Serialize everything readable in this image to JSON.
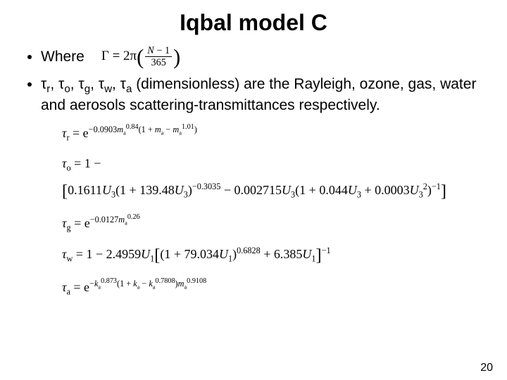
{
  "title": "Iqbal model C",
  "bullet_where": "Where",
  "gamma_formula_html": "Γ = 2π<span class=\"bigparen\">(</span><span class=\"frac\"><span class=\"num\"><i>N</i> − 1</span><span class=\"den\">365</span></span><span class=\"bigparen\">)</span>",
  "bullet_transmittances": "τ<span class=\"sub\">r</span>, τ<span class=\"sub\">o</span>, τ<span class=\"sub\">g</span>, τ<span class=\"sub\">w</span>, τ<span class=\"sub\">a</span> (dimensionless) are the Rayleigh, ozone, gas, water and aerosols scattering-transmittances respectively.",
  "eq_r": "<i>τ</i><span class=\"low\">r</span> = e<span class=\"exp\">−0.0903<i>m</i><span class=\"low\">a</span><sup>0.84</sup>(1 + <i>m</i><span class=\"low\">a</span> − <i>m</i><span class=\"low\">a</span><sup>1.01</sup>)</span>",
  "eq_o_line1": "<i>τ</i><span class=\"low\">o</span> = 1 −",
  "eq_o_line2": "<span class=\"brkt\">[</span>0.1611<i>U</i><span class=\"low\">3</span>(1 + 139.48<i>U</i><span class=\"low\">3</span>)<span class=\"exp\">−0.3035</span> − 0.002715<i>U</i><span class=\"low\">3</span>(1 + 0.044<i>U</i><span class=\"low\">3</span> + 0.0003<i>U</i><span class=\"low\">3</span><span class=\"exp\">2</span>)<span class=\"exp\">−1</span><span class=\"brkt\">]</span>",
  "eq_g": "<i>τ</i><span class=\"low\">g</span> = e<span class=\"exp\">−0.0127<i>m</i><span class=\"low\">a</span><sup>0.26</sup></span>",
  "eq_w": "<i>τ</i><span class=\"low\">w</span> = 1 − 2.4959<i>U</i><span class=\"low\">1</span><span class=\"brkt\">[</span>(1 + 79.034<i>U</i><span class=\"low\">1</span>)<span class=\"exp\">0.6828</span> + 6.385<i>U</i><span class=\"low\">1</span><span class=\"brkt\">]</span><span class=\"exp\">−1</span>",
  "eq_a": "<i>τ</i><span class=\"low\">a</span> = e<span class=\"exp\">−<i>k</i><span class=\"low\">a</span><sup>0.873</sup>(1 + <i>k</i><span class=\"low\">a</span> − <i>k</i><span class=\"low\">a</span><sup>0.7808</sup>)<i>m</i><span class=\"low\">a</span><sup>0.9108</sup></span>",
  "page_number": "20",
  "colors": {
    "bg": "#ffffff",
    "text": "#000000"
  }
}
